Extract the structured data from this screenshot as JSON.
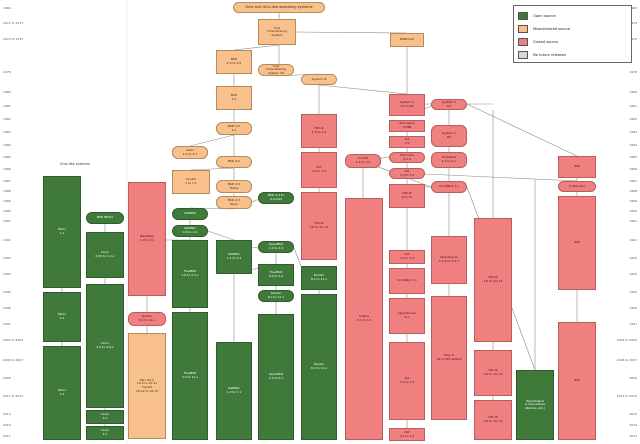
{
  "title": "Unix and Unix-like operating systems",
  "side_label": "Unix-like systems",
  "legend": [
    {
      "label": "Open source",
      "color": "#3f7a3a"
    },
    {
      "label": "Mixed/shared source",
      "color": "#f8c08b"
    },
    {
      "label": "Closed source",
      "color": "#f08080"
    },
    {
      "label": "No future releases",
      "color": "#d8d8d8"
    }
  ],
  "years": [
    "1969",
    "1971 to 1973",
    "1974 to 1975",
    "1978",
    "1980",
    "1981",
    "1982",
    "1983",
    "1984",
    "1985",
    "1986",
    "1987",
    "1988",
    "1989",
    "1990",
    "1991",
    "1992",
    "1993",
    "1994",
    "1995",
    "1996",
    "1997",
    "1998",
    "1999",
    "2000",
    "2001 to 2004",
    "2005",
    "2006 to 2007",
    "2008",
    "2009",
    "2010",
    "2011 to 2012",
    "2013",
    "2014",
    "2015 to 2016",
    "2017"
  ],
  "nodes": [
    {
      "id": "unics",
      "text": "Open source\nUNICS"
    },
    {
      "id": "unix_tsd",
      "text": "Unix\nTime-Sharing\nSystem"
    },
    {
      "id": "pwb",
      "text": "PWB/Unix"
    },
    {
      "id": "bsd1",
      "text": "BSD\n1.0 to 2.0"
    },
    {
      "id": "unix_v6",
      "text": "Unix\nTime-Sharing\nSystem V6"
    },
    {
      "id": "bsd2",
      "text": "BSD\n2.x"
    },
    {
      "id": "bsd3",
      "text": "BSD 3.0\n4.1"
    },
    {
      "id": "xenix",
      "text": "Xenix\n1.0 to 2.3"
    },
    {
      "id": "bsd42",
      "text": "BSD 4.2"
    },
    {
      "id": "sunos",
      "text": "SunOS\n1 to 1.1"
    },
    {
      "id": "hpux",
      "text": "HP-UX\n1.0 to 1.2"
    },
    {
      "id": "bsd43",
      "text": "BSD 4.3\nTahoe"
    },
    {
      "id": "bsd43r",
      "text": "BSD 4.3\nReno"
    },
    {
      "id": "bsd_net",
      "text": "BSD NET/2"
    },
    {
      "id": "minix1",
      "text": "Minix\n1.x"
    },
    {
      "id": "minix2",
      "text": "Minix\n2.x"
    },
    {
      "id": "minix3",
      "text": "Minix\n3.x"
    },
    {
      "id": "linux",
      "text": "Linux\n0.95 to 1.2.x"
    },
    {
      "id": "linux2",
      "text": "Linux\n2.0 to 2.6.x"
    },
    {
      "id": "linux3",
      "text": "Linux\n3.x"
    },
    {
      "id": "linux4",
      "text": "Linux\n4.x"
    },
    {
      "id": "386bsd",
      "text": "386BSD"
    },
    {
      "id": "bsd44",
      "text": "BSD 4.4 to\n4.4 lite2"
    },
    {
      "id": "netbsd",
      "text": "NetBSD\n0.8 to 1.0"
    },
    {
      "id": "netbsd2",
      "text": "NetBSD\n1.1 to 1.2"
    },
    {
      "id": "freebsd",
      "text": "FreeBSD\n1.0 to 2.2.x"
    },
    {
      "id": "freebsd3",
      "text": "FreeBSD\n3.0 to 3.2"
    },
    {
      "id": "openbsd",
      "text": "OpenBSD\n1.0 to 2.2"
    },
    {
      "id": "openbsd2",
      "text": "OpenBSD\n2.3 to 6.x"
    },
    {
      "id": "netbsd3",
      "text": "NetBSD\n1.3 to 7.1"
    },
    {
      "id": "freebsd4",
      "text": "FreeBSD\n3.3 to 11.x"
    },
    {
      "id": "darwin",
      "text": "Darwin\n8.x to 11.x"
    },
    {
      "id": "macosx",
      "text": "Mac OS X\nServer"
    },
    {
      "id": "macos",
      "text": "Mac OS X\n10.0 to 10.11\nmacOS\n10.12 to 10.13"
    },
    {
      "id": "nextstep",
      "text": "NextStep\n1.0 to 3.x"
    },
    {
      "id": "sunos4",
      "text": "SunOS\n1.2 to 3.0"
    },
    {
      "id": "solaris",
      "text": "Solaris\n2.1 to 10"
    },
    {
      "id": "sysv",
      "text": "System III"
    },
    {
      "id": "sysv4",
      "text": "System V\nR1 to R2"
    },
    {
      "id": "sysv3",
      "text": "System V\nR3"
    },
    {
      "id": "sysv_r4",
      "text": "System V\nR4"
    },
    {
      "id": "unixware",
      "text": "UnixWare\n1.x to 2.x"
    },
    {
      "id": "unixware7",
      "text": "UnixWare 7.x"
    },
    {
      "id": "openserver",
      "text": "OpenServer\n5.0.5 to 5.0.7"
    },
    {
      "id": "openserver6",
      "text": "OpenServer\n6.x"
    },
    {
      "id": "sco",
      "text": "SCO Xenix\nV/386"
    },
    {
      "id": "sco2",
      "text": "SCO Unix\n3.2.4"
    },
    {
      "id": "aix",
      "text": "AIX\n1.0"
    },
    {
      "id": "aix3",
      "text": "AIX\n3.x to 7.2"
    },
    {
      "id": "hpux2",
      "text": "HP-UX\n2.0 to 3.0"
    },
    {
      "id": "hpux6",
      "text": "HP-UX\n6 to 11"
    },
    {
      "id": "hpux11",
      "text": "HP-UX\n11i to 11i v3"
    },
    {
      "id": "illumos",
      "text": "OpenSolaris\n& derivatives\n(illumos, etc.)"
    },
    {
      "id": "plan9",
      "text": "Plan 9\n1st to 4th edition"
    },
    {
      "id": "irix",
      "text": "IRIX"
    },
    {
      "id": "tru64",
      "text": "Tru64 Unix"
    }
  ]
}
